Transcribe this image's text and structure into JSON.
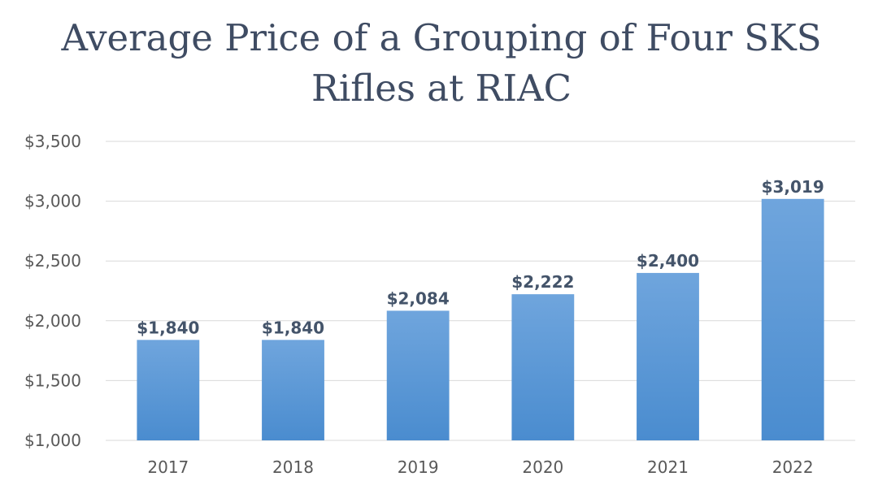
{
  "chart_data": {
    "type": "bar",
    "title_lines": [
      "Average Price of a Grouping of Four SKS",
      "Rifles at RIAC"
    ],
    "categories": [
      "2017",
      "2018",
      "2019",
      "2020",
      "2021",
      "2022"
    ],
    "values": [
      1840,
      1840,
      2084,
      2222,
      2400,
      3019
    ],
    "data_labels": [
      "$1,840",
      "$1,840",
      "$2,084",
      "$2,222",
      "$2,400",
      "$3,019"
    ],
    "y_ticks": [
      1000,
      1500,
      2000,
      2500,
      3000,
      3500
    ],
    "y_tick_labels": [
      "$1,000",
      "$1,500",
      "$2,000",
      "$2,500",
      "$3,000",
      "$3,500"
    ],
    "ylim": [
      1000,
      3500
    ],
    "xlabel": "",
    "ylabel": "",
    "grid": true,
    "legend": "none",
    "colors": {
      "bar_top": "#6fa5dd",
      "bar_bottom": "#4a8ccf",
      "title": "#3f4c63",
      "data_label": "#44546a",
      "tick_label": "#595959",
      "grid": "#d9d9d9"
    }
  }
}
